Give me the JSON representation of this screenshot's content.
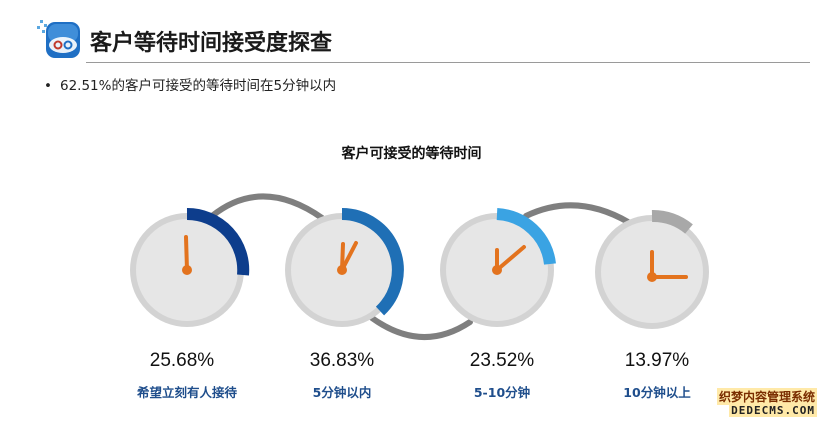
{
  "header": {
    "title": "客户等待时间接受度探查",
    "logo": "blue-rounded-square-logo"
  },
  "bullet": {
    "text": "62.51%的客户可接受的等待时间在5分钟以内"
  },
  "chart": {
    "subtitle": "客户可接受的等待时间",
    "items": [
      {
        "value": "25.68%",
        "label": "希望立刻有人接待",
        "fraction": 0.2568,
        "color": "#0d3d8c"
      },
      {
        "value": "36.83%",
        "label": "5分钟以内",
        "fraction": 0.3683,
        "color": "#1f6fb5"
      },
      {
        "value": "23.52%",
        "label": "5-10分钟",
        "fraction": 0.2352,
        "color": "#3aa3e3"
      },
      {
        "value": "13.97%",
        "label": "10分钟以上",
        "fraction": 0.1397,
        "color": "#a8a8a8"
      }
    ]
  },
  "colors": {
    "hand": "#e3731e",
    "face": "#e6e6e6",
    "face_ring": "#d3d3d3",
    "connector": "#7f7f7f",
    "caption": "#1f4e8c"
  },
  "watermark": {
    "line1": "织梦内容管理系统",
    "line2": "DEDECMS.COM"
  }
}
